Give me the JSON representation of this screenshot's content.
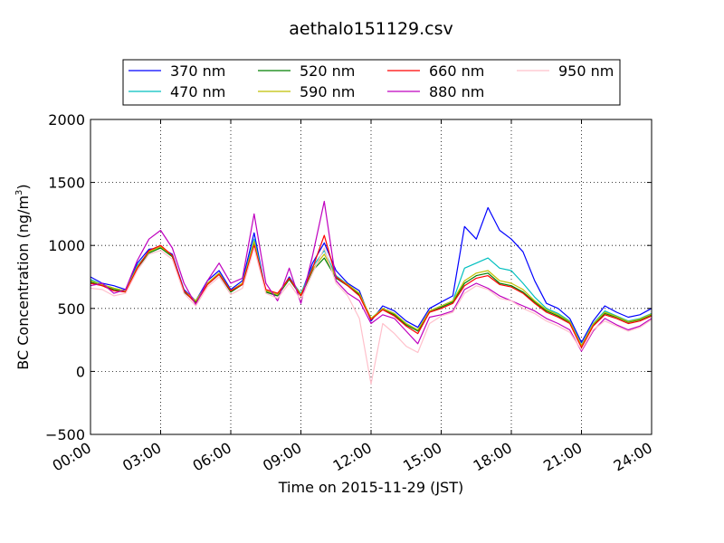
{
  "chart_data": {
    "type": "line",
    "title": "aethalo151129.csv",
    "xlabel": "Time on 2015-11-29 (JST)",
    "ylabel": "BC Concentration (ng/m",
    "ylabel_sup": "3",
    "ylabel_tail": ")",
    "xlim": [
      0,
      24
    ],
    "ylim": [
      -500,
      2000
    ],
    "x_ticks": [
      {
        "v": 0,
        "label": "00:00"
      },
      {
        "v": 3,
        "label": "03:00"
      },
      {
        "v": 6,
        "label": "06:00"
      },
      {
        "v": 9,
        "label": "09:00"
      },
      {
        "v": 12,
        "label": "12:00"
      },
      {
        "v": 15,
        "label": "15:00"
      },
      {
        "v": 18,
        "label": "18:00"
      },
      {
        "v": 21,
        "label": "21:00"
      },
      {
        "v": 24,
        "label": "24:00"
      }
    ],
    "y_ticks": [
      {
        "v": -500,
        "label": "−500"
      },
      {
        "v": 0,
        "label": "0"
      },
      {
        "v": 500,
        "label": "500"
      },
      {
        "v": 1000,
        "label": "1000"
      },
      {
        "v": 1500,
        "label": "1500"
      },
      {
        "v": 2000,
        "label": "2000"
      }
    ],
    "grid": true,
    "legend": "top-center",
    "x": [
      0,
      0.5,
      1,
      1.5,
      2,
      2.5,
      3,
      3.5,
      4,
      4.5,
      5,
      5.5,
      6,
      6.5,
      7,
      7.5,
      8,
      8.5,
      9,
      9.5,
      10,
      10.5,
      11,
      11.5,
      12,
      12.5,
      13,
      13.5,
      14,
      14.5,
      15,
      15.5,
      16,
      16.5,
      17,
      17.5,
      18,
      18.5,
      19,
      19.5,
      20,
      20.5,
      21,
      21.5,
      22,
      22.5,
      23,
      23.5,
      24
    ],
    "series": [
      {
        "name": "370 nm",
        "color": "#0000ff",
        "values": [
          750,
          700,
          680,
          650,
          860,
          970,
          980,
          930,
          650,
          560,
          720,
          800,
          650,
          720,
          1100,
          630,
          600,
          750,
          610,
          860,
          1020,
          800,
          700,
          640,
          400,
          520,
          480,
          400,
          350,
          500,
          550,
          600,
          1150,
          1050,
          1300,
          1120,
          1050,
          950,
          720,
          540,
          500,
          420,
          230,
          400,
          520,
          470,
          430,
          450,
          500
        ]
      },
      {
        "name": "470 nm",
        "color": "#00bfbf",
        "values": [
          730,
          690,
          660,
          640,
          840,
          950,
          990,
          920,
          640,
          560,
          700,
          780,
          640,
          700,
          1050,
          640,
          610,
          740,
          620,
          830,
          960,
          760,
          690,
          620,
          420,
          500,
          460,
          380,
          330,
          480,
          520,
          560,
          820,
          860,
          900,
          820,
          800,
          700,
          590,
          500,
          460,
          400,
          210,
          380,
          480,
          440,
          400,
          420,
          460
        ]
      },
      {
        "name": "520 nm",
        "color": "#007f00",
        "values": [
          710,
          680,
          650,
          630,
          820,
          940,
          980,
          910,
          630,
          550,
          690,
          770,
          630,
          690,
          1020,
          630,
          600,
          730,
          600,
          800,
          900,
          740,
          680,
          610,
          420,
          490,
          450,
          370,
          320,
          470,
          510,
          550,
          700,
          760,
          780,
          700,
          680,
          630,
          550,
          480,
          440,
          390,
          200,
          370,
          460,
          430,
          390,
          410,
          450
        ]
      },
      {
        "name": "590 nm",
        "color": "#bfbf00",
        "values": [
          720,
          690,
          660,
          640,
          830,
          950,
          990,
          920,
          640,
          560,
          700,
          780,
          640,
          700,
          1030,
          640,
          610,
          740,
          610,
          810,
          930,
          750,
          690,
          620,
          420,
          500,
          460,
          380,
          330,
          480,
          520,
          560,
          720,
          780,
          800,
          720,
          700,
          650,
          560,
          490,
          450,
          395,
          205,
          375,
          470,
          435,
          395,
          415,
          455
        ]
      },
      {
        "name": "660 nm",
        "color": "#ff0000",
        "values": [
          700,
          680,
          640,
          630,
          820,
          960,
          1000,
          920,
          640,
          540,
          690,
          770,
          640,
          690,
          1000,
          650,
          620,
          740,
          600,
          820,
          1080,
          750,
          680,
          600,
          410,
          490,
          440,
          360,
          300,
          470,
          500,
          540,
          680,
          740,
          760,
          690,
          670,
          620,
          540,
          470,
          430,
          380,
          190,
          360,
          450,
          420,
          380,
          400,
          440
        ]
      },
      {
        "name": "880 nm",
        "color": "#bf00bf",
        "values": [
          680,
          700,
          620,
          650,
          880,
          1050,
          1120,
          980,
          700,
          530,
          720,
          860,
          700,
          740,
          1250,
          700,
          560,
          820,
          540,
          920,
          1350,
          720,
          620,
          560,
          380,
          450,
          420,
          320,
          220,
          430,
          450,
          480,
          650,
          700,
          660,
          600,
          560,
          520,
          480,
          420,
          380,
          330,
          160,
          320,
          420,
          370,
          330,
          360,
          420
        ]
      },
      {
        "name": "950 nm",
        "color": "#ffc0cb",
        "values": [
          660,
          650,
          600,
          620,
          800,
          930,
          960,
          890,
          620,
          520,
          670,
          750,
          610,
          660,
          980,
          620,
          580,
          700,
          570,
          780,
          980,
          700,
          600,
          420,
          -100,
          380,
          300,
          200,
          150,
          380,
          440,
          470,
          620,
          680,
          650,
          580,
          560,
          500,
          460,
          400,
          360,
          310,
          170,
          330,
          400,
          360,
          320,
          350,
          410
        ]
      }
    ]
  }
}
